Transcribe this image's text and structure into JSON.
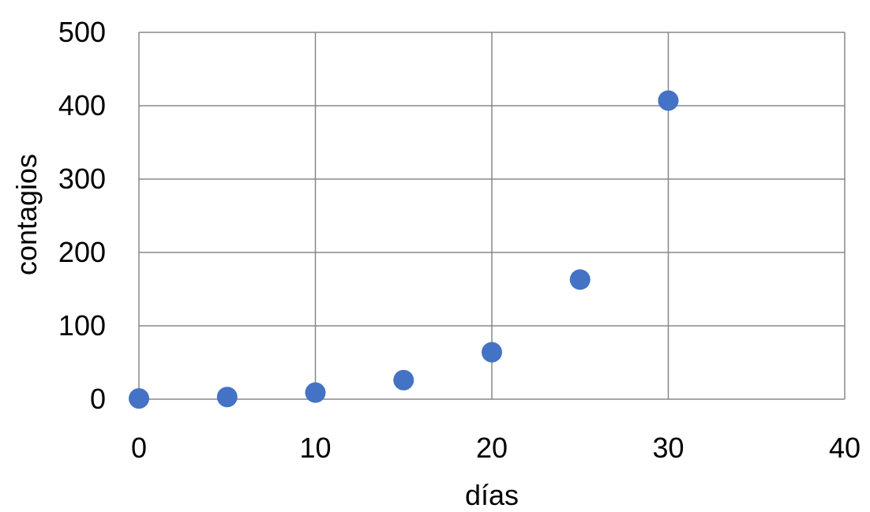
{
  "chart_data": {
    "type": "scatter",
    "title": "",
    "xlabel": "días",
    "ylabel": "contagios",
    "xlim": [
      0,
      40
    ],
    "ylim": [
      0,
      500
    ],
    "xticks": [
      "0",
      "10",
      "20",
      "30",
      "40"
    ],
    "yticks": [
      "0",
      "100",
      "200",
      "300",
      "400",
      "500"
    ],
    "grid": true,
    "legend": "none",
    "series": [
      {
        "color": "#4472C4",
        "points": [
          {
            "x": 0,
            "y": 1
          },
          {
            "x": 5,
            "y": 3
          },
          {
            "x": 10,
            "y": 9
          },
          {
            "x": 15,
            "y": 26
          },
          {
            "x": 20,
            "y": 64
          },
          {
            "x": 25,
            "y": 163
          },
          {
            "x": 30,
            "y": 407
          }
        ]
      }
    ]
  }
}
